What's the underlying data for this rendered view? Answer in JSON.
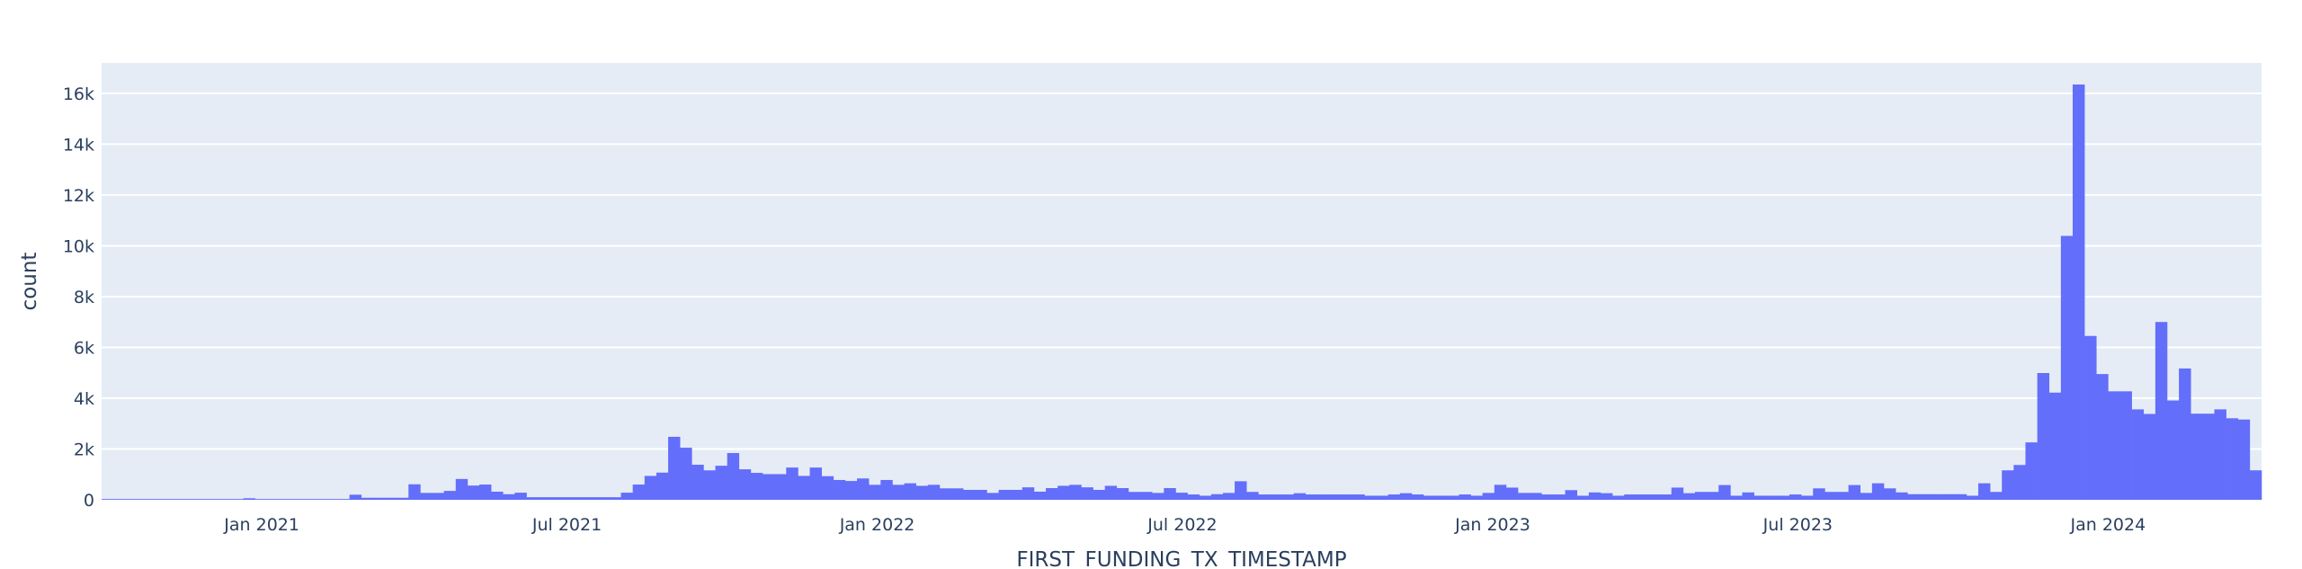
{
  "chart_data": {
    "type": "bar",
    "histogram": true,
    "xlabel": "FIRST_FUNDING_TX_TIMESTAMP",
    "ylabel": "count",
    "bins": {
      "start": "2020-09-28",
      "size_days": 7
    },
    "xlim": [
      "2020-09-28",
      "2024-04-01"
    ],
    "ylim": [
      0,
      17200
    ],
    "grid": true,
    "x_ticks": [
      {
        "date": "2021-01-01",
        "label": "Jan 2021"
      },
      {
        "date": "2021-07-01",
        "label": "Jul 2021"
      },
      {
        "date": "2022-01-01",
        "label": "Jan 2022"
      },
      {
        "date": "2022-07-01",
        "label": "Jul 2022"
      },
      {
        "date": "2023-01-01",
        "label": "Jan 2023"
      },
      {
        "date": "2023-07-01",
        "label": "Jul 2023"
      },
      {
        "date": "2024-01-01",
        "label": "Jan 2024"
      }
    ],
    "y_ticks": [
      {
        "value": 0,
        "label": "0"
      },
      {
        "value": 2000,
        "label": "2k"
      },
      {
        "value": 4000,
        "label": "4k"
      },
      {
        "value": 6000,
        "label": "6k"
      },
      {
        "value": 8000,
        "label": "8k"
      },
      {
        "value": 10000,
        "label": "10k"
      },
      {
        "value": 12000,
        "label": "12k"
      },
      {
        "value": 14000,
        "label": "14k"
      },
      {
        "value": 16000,
        "label": "16k"
      }
    ],
    "counts": [
      30,
      30,
      30,
      30,
      30,
      30,
      30,
      30,
      30,
      30,
      30,
      30,
      60,
      30,
      30,
      30,
      30,
      30,
      30,
      30,
      30,
      200,
      80,
      80,
      80,
      80,
      610,
      270,
      270,
      350,
      820,
      560,
      600,
      320,
      220,
      280,
      100,
      100,
      100,
      100,
      100,
      100,
      100,
      100,
      280,
      600,
      940,
      1070,
      2480,
      2050,
      1380,
      1160,
      1340,
      1840,
      1200,
      1060,
      1010,
      1010,
      1270,
      940,
      1270,
      930,
      780,
      740,
      840,
      590,
      780,
      590,
      650,
      550,
      590,
      450,
      450,
      390,
      390,
      270,
      390,
      390,
      490,
      320,
      460,
      550,
      590,
      490,
      390,
      550,
      460,
      310,
      310,
      270,
      460,
      280,
      210,
      160,
      220,
      270,
      730,
      310,
      210,
      210,
      210,
      260,
      210,
      210,
      210,
      210,
      210,
      160,
      160,
      210,
      260,
      210,
      160,
      160,
      160,
      210,
      160,
      270,
      590,
      480,
      270,
      270,
      210,
      210,
      380,
      160,
      290,
      260,
      160,
      210,
      210,
      210,
      210,
      480,
      260,
      310,
      310,
      580,
      160,
      290,
      160,
      160,
      160,
      210,
      160,
      450,
      310,
      310,
      580,
      270,
      650,
      450,
      290,
      220,
      220,
      220,
      220,
      220,
      160,
      650,
      310,
      1160,
      1370,
      2260,
      4990,
      4220,
      10390,
      16350,
      6450,
      4950,
      4270,
      4270,
      3560,
      3380,
      7000,
      3910,
      5170,
      3390,
      3390,
      3560,
      3210,
      3160,
      1160
    ],
    "colors": {
      "bar": "#636efa",
      "plot_bg": "#e5ecf6",
      "grid": "#ffffff",
      "text": "#2a3f5f"
    }
  }
}
